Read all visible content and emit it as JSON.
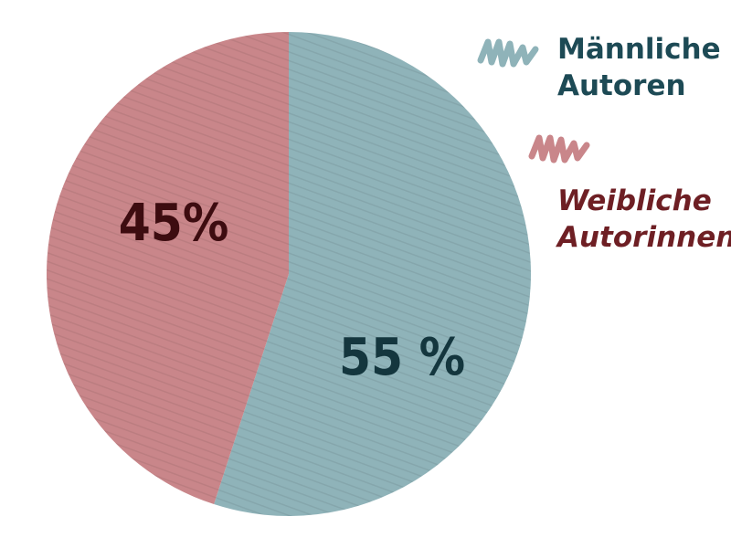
{
  "chart_data": {
    "type": "pie",
    "slices": [
      {
        "label": "Männliche Autoren",
        "label_lines": [
          "Männliche",
          "Autoren"
        ],
        "value": 55,
        "value_label": "55 %",
        "color": "#8fb3b9",
        "text_color": "#1d4a55",
        "label_italic": false
      },
      {
        "label": "Weibliche Autorinnen",
        "label_lines": [
          "Weibliche",
          "Autorinnen"
        ],
        "value": 45,
        "value_label": "45%",
        "color": "#c9868a",
        "text_color": "#6e1f24",
        "label_italic": true
      }
    ],
    "legend_position": "top-right",
    "data_label_colors": [
      "#14363e",
      "#3d0c10"
    ]
  }
}
